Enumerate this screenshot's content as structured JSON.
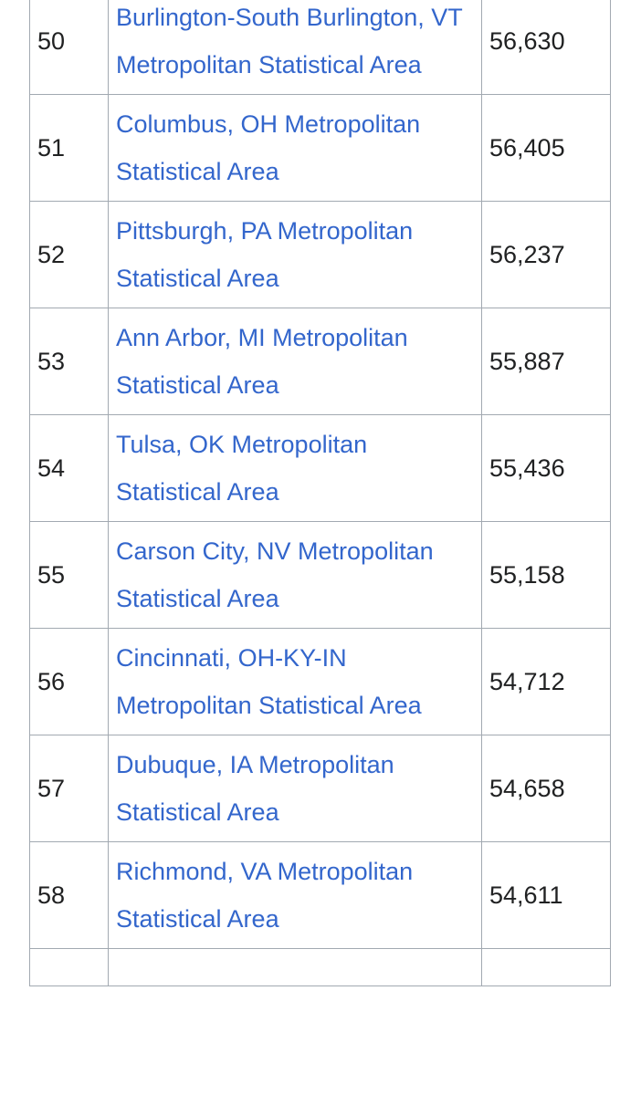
{
  "table": {
    "rows": [
      [
        "50",
        "Burlington-South Burlington, VT Metropolitan Statistical Area",
        "56,630"
      ],
      [
        "51",
        "Columbus, OH Metropolitan Statistical Area",
        "56,405"
      ],
      [
        "52",
        "Pittsburgh, PA Metropolitan Statistical Area",
        "56,237"
      ],
      [
        "53",
        "Ann Arbor, MI Metropolitan Statistical Area",
        "55,887"
      ],
      [
        "54",
        "Tulsa, OK Metropolitan Statistical Area",
        "55,436"
      ],
      [
        "55",
        "Carson City, NV Metropolitan Statistical Area",
        "55,158"
      ],
      [
        "56",
        "Cincinnati, OH-KY-IN Metropolitan Statistical Area",
        "54,712"
      ],
      [
        "57",
        "Dubuque, IA Metropolitan Statistical Area",
        "54,658"
      ],
      [
        "58",
        "Richmond, VA Metropolitan Statistical Area",
        "54,611"
      ]
    ]
  }
}
